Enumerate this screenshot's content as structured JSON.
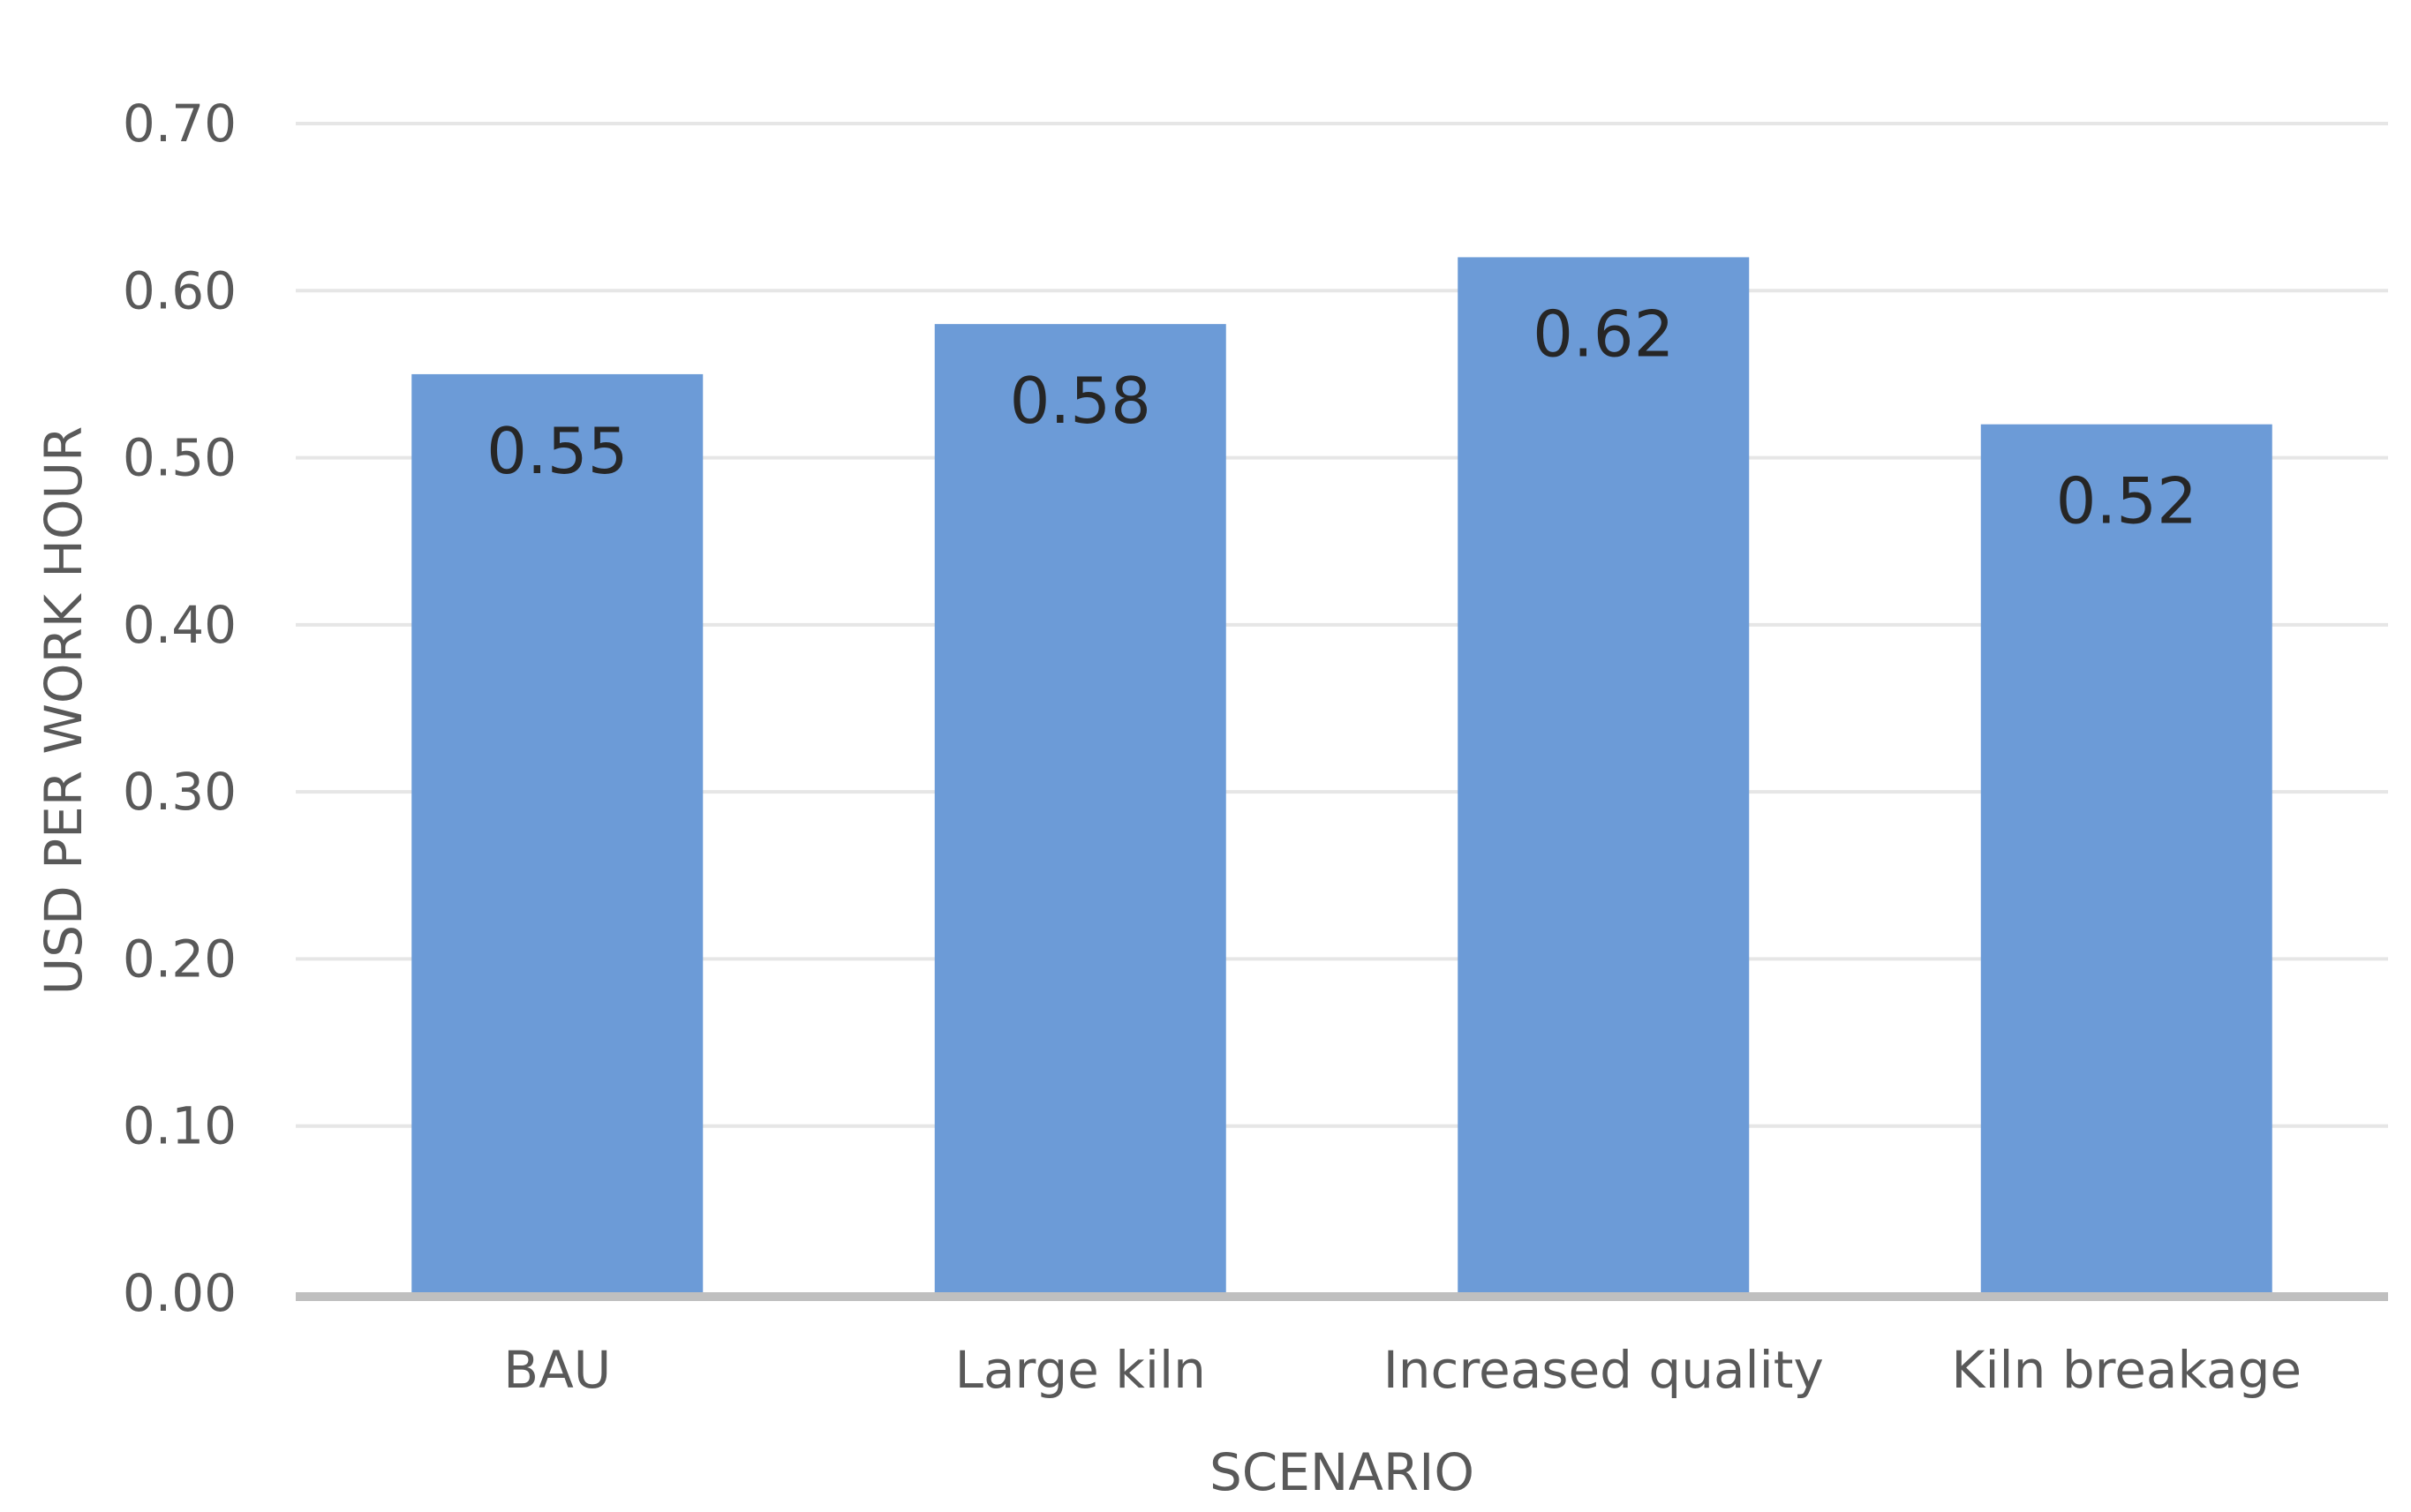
{
  "chart_data": {
    "type": "bar",
    "xlabel": "SCENARIO",
    "ylabel": "USD PER WORK HOUR",
    "categories": [
      "BAU",
      "Large kiln",
      "Increased quality",
      "Kiln breakage"
    ],
    "values": [
      0.55,
      0.58,
      0.62,
      0.52
    ],
    "data_labels": [
      "0.55",
      "0.58",
      "0.62",
      "0.52"
    ],
    "ylim": [
      0,
      0.7
    ],
    "yticks": [
      "0.00",
      "0.10",
      "0.20",
      "0.30",
      "0.40",
      "0.50",
      "0.60",
      "0.70"
    ],
    "grid": true,
    "legend": "none",
    "bar_color": "#6c9bd7"
  }
}
